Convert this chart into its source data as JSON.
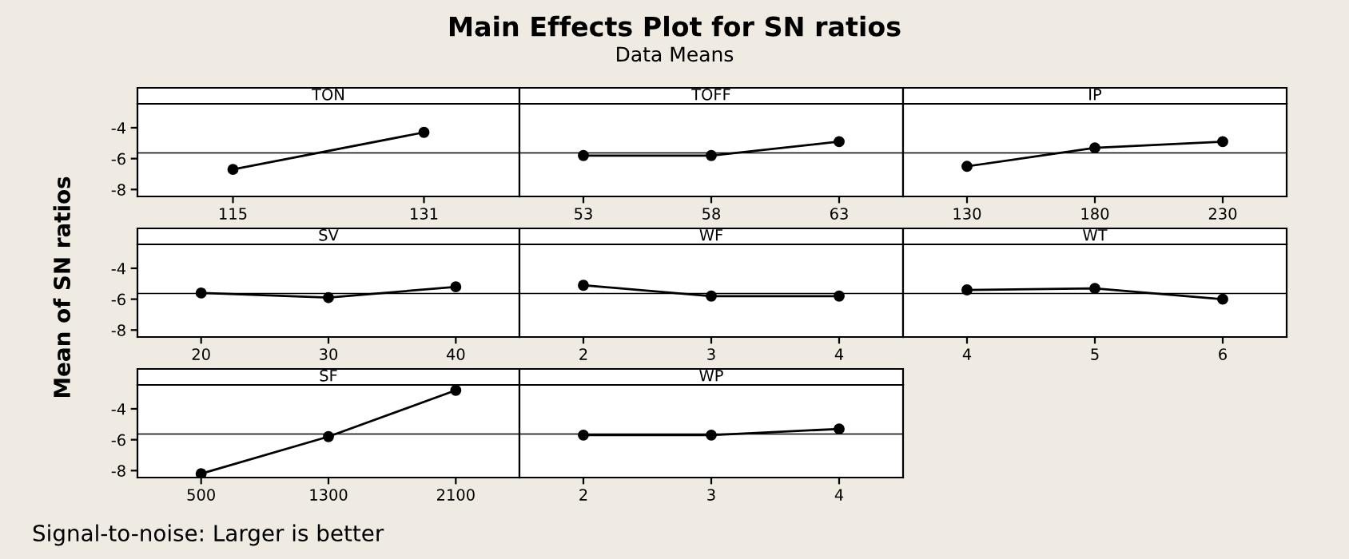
{
  "chart_data": [
    {
      "type": "line",
      "xlabel": "TON",
      "categories": [
        "115",
        "131"
      ],
      "values": [
        -6.7,
        -4.3
      ],
      "color": "#000000",
      "marker": "circle",
      "ylim": [
        -8.45,
        -2.45
      ],
      "yticks": [
        -8,
        -6,
        -4
      ],
      "ref_lines": [
        {
          "axis": "y",
          "value": -5.63,
          "color": "#000000"
        }
      ]
    },
    {
      "type": "line",
      "title": "Main Effects Plot for SN ratios",
      "subtitle": "Data Means",
      "xlabel": "TOFF",
      "categories": [
        "53",
        "58",
        "63"
      ],
      "values": [
        -5.8,
        -5.8,
        -4.9
      ],
      "color": "#000000",
      "marker": "circle",
      "ylim": [
        -8.45,
        -2.45
      ],
      "yticks": [
        -8,
        -6,
        -4
      ],
      "ref_lines": [
        {
          "axis": "y",
          "value": -5.63,
          "color": "#000000"
        }
      ],
      "tick_labels": "x"
    },
    {
      "type": "line",
      "xlabel": "IP",
      "categories": [
        "130",
        "180",
        "230"
      ],
      "values": [
        -6.5,
        -5.3,
        -4.9
      ],
      "color": "#000000",
      "marker": "circle",
      "ylim": [
        -8.45,
        -2.45
      ],
      "yticks": [
        -8,
        -6,
        -4
      ],
      "ref_lines": [
        {
          "axis": "y",
          "value": -5.63,
          "color": "#000000"
        }
      ],
      "tick_labels": "x"
    },
    {
      "type": "line",
      "ylabel": "Mean of SN ratios",
      "xlabel": "SV",
      "categories": [
        "20",
        "30",
        "40"
      ],
      "values": [
        -5.6,
        -5.9,
        -5.2
      ],
      "color": "#000000",
      "marker": "circle",
      "ylim": [
        -8.45,
        -2.45
      ],
      "yticks": [
        -8,
        -6,
        -4
      ],
      "ref_lines": [
        {
          "axis": "y",
          "value": -5.63,
          "color": "#000000"
        }
      ]
    },
    {
      "type": "line",
      "xlabel": "WF",
      "categories": [
        "2",
        "3",
        "4"
      ],
      "values": [
        -5.1,
        -5.8,
        -5.8
      ],
      "color": "#000000",
      "marker": "circle",
      "ylim": [
        -8.45,
        -2.45
      ],
      "yticks": [
        -8,
        -6,
        -4
      ],
      "ref_lines": [
        {
          "axis": "y",
          "value": -5.63,
          "color": "#000000"
        }
      ],
      "tick_labels": "x"
    },
    {
      "type": "line",
      "xlabel": "WT",
      "categories": [
        "4",
        "5",
        "6"
      ],
      "values": [
        -5.4,
        -5.3,
        -6.0
      ],
      "color": "#000000",
      "marker": "circle",
      "ylim": [
        -8.45,
        -2.45
      ],
      "yticks": [
        -8,
        -6,
        -4
      ],
      "ref_lines": [
        {
          "axis": "y",
          "value": -5.63,
          "color": "#000000"
        }
      ],
      "tick_labels": "x"
    },
    {
      "type": "line",
      "annotations": [
        "Signal-to-noise: Larger is better"
      ],
      "xlabel": "SF",
      "categories": [
        "500",
        "1300",
        "2100"
      ],
      "values": [
        -8.2,
        -5.8,
        -2.8
      ],
      "color": "#000000",
      "marker": "circle",
      "ylim": [
        -8.45,
        -2.45
      ],
      "yticks": [
        -8,
        -6,
        -4
      ],
      "ref_lines": [
        {
          "axis": "y",
          "value": -5.63,
          "color": "#000000"
        }
      ]
    },
    {
      "type": "line",
      "xlabel": "WP",
      "categories": [
        "2",
        "3",
        "4"
      ],
      "values": [
        -5.7,
        -5.7,
        -5.3
      ],
      "color": "#000000",
      "marker": "circle",
      "ylim": [
        -8.45,
        -2.45
      ],
      "yticks": [
        -8,
        -6,
        -4
      ],
      "ref_lines": [
        {
          "axis": "y",
          "value": -5.63,
          "color": "#000000"
        }
      ],
      "tick_labels": "x"
    }
  ]
}
